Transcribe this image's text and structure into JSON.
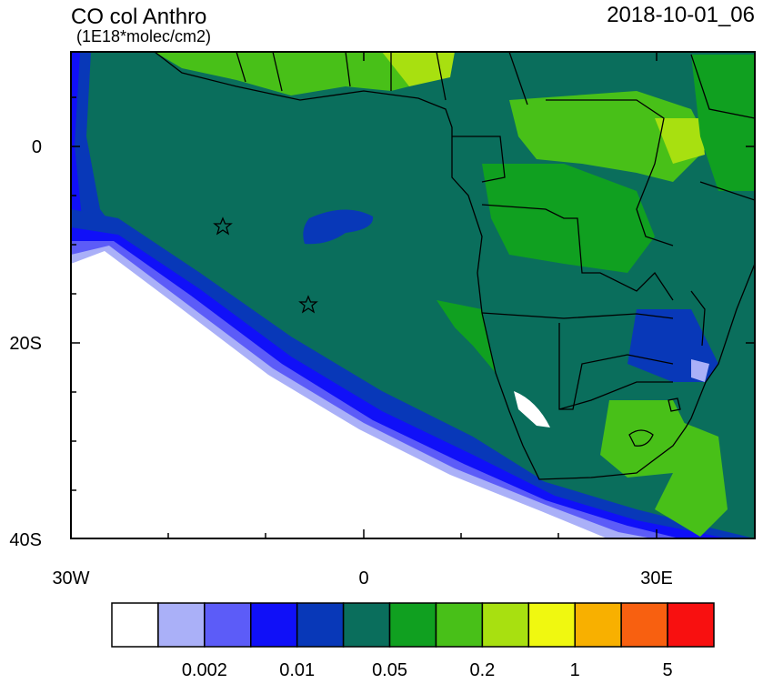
{
  "header": {
    "title": "CO col Anthro",
    "units": "(1E18*molec/cm2)",
    "date": "2018-10-01_06"
  },
  "axes": {
    "y_labels": [
      "0",
      "20S",
      "40S"
    ],
    "x_labels": [
      "30W",
      "0",
      "30E"
    ]
  },
  "colorbar": {
    "colors": [
      "#ffffff",
      "#aab0f8",
      "#5c5cf8",
      "#1010f8",
      "#0838b8",
      "#0a6e5c",
      "#10a020",
      "#48c018",
      "#a8e010",
      "#f0f810",
      "#f8b000",
      "#f86010",
      "#f81010"
    ],
    "labels": [
      "0.002",
      "0.01",
      "0.05",
      "0.2",
      "1",
      "5"
    ]
  }
}
